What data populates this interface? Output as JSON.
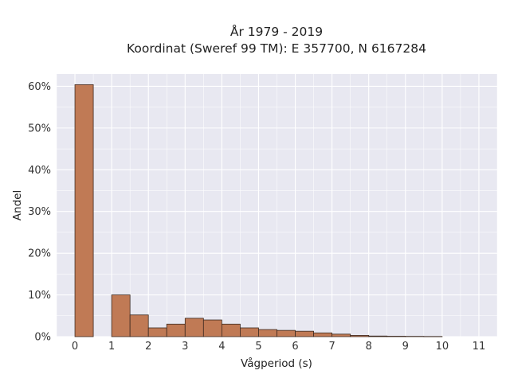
{
  "chart_data": {
    "type": "bar",
    "title_line1": "År 1979 - 2019",
    "title_line2": "Koordinat (Sweref 99 TM): E 357700, N 6167284",
    "xlabel": "Vågperiod (s)",
    "ylabel": "Andel",
    "xlim": [
      -0.5,
      11.5
    ],
    "ylim": [
      0,
      0.6295
    ],
    "x_ticks": [
      0,
      1,
      2,
      3,
      4,
      5,
      6,
      7,
      8,
      9,
      10,
      11
    ],
    "y_ticks": [
      0,
      0.1,
      0.2,
      0.3,
      0.4,
      0.5,
      0.6
    ],
    "y_tick_labels": [
      "0%",
      "10%",
      "20%",
      "30%",
      "40%",
      "50%",
      "60%"
    ],
    "bin_width": 0.5,
    "bins": [
      {
        "left": 0.0,
        "value": 0.604
      },
      {
        "left": 0.5,
        "value": 0.0
      },
      {
        "left": 1.0,
        "value": 0.1
      },
      {
        "left": 1.5,
        "value": 0.052
      },
      {
        "left": 2.0,
        "value": 0.021
      },
      {
        "left": 2.5,
        "value": 0.03
      },
      {
        "left": 3.0,
        "value": 0.044
      },
      {
        "left": 3.5,
        "value": 0.04
      },
      {
        "left": 4.0,
        "value": 0.03
      },
      {
        "left": 4.5,
        "value": 0.021
      },
      {
        "left": 5.0,
        "value": 0.017
      },
      {
        "left": 5.5,
        "value": 0.015
      },
      {
        "left": 6.0,
        "value": 0.013
      },
      {
        "left": 6.5,
        "value": 0.009
      },
      {
        "left": 7.0,
        "value": 0.006
      },
      {
        "left": 7.5,
        "value": 0.003
      },
      {
        "left": 8.0,
        "value": 0.0015
      },
      {
        "left": 8.5,
        "value": 0.001
      },
      {
        "left": 9.0,
        "value": 0.0007
      },
      {
        "left": 9.5,
        "value": 0.0004
      }
    ],
    "grid": true,
    "colors": {
      "bar_fill": "#c07a55",
      "bar_edge": "#3d2a20",
      "plot_background": "#e8e8f1",
      "grid": "#ffffff"
    }
  }
}
